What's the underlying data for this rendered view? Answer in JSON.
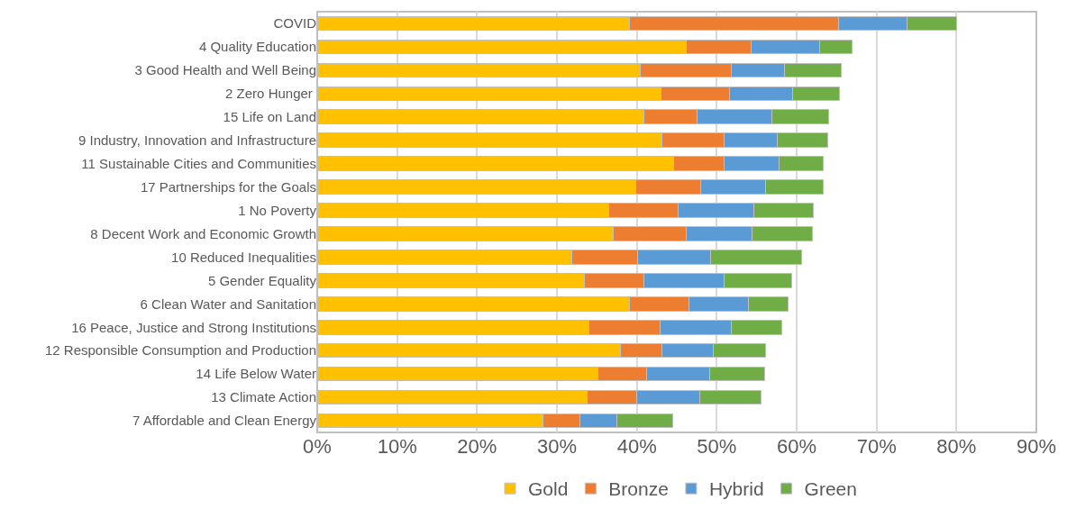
{
  "chart_data": {
    "type": "bar",
    "orientation": "horizontal",
    "stacked": true,
    "categories": [
      "COVID",
      "4 Quality Education",
      "3 Good Health and Well Being",
      "2 Zero Hunger ",
      "15 Life on Land",
      "9 Industry, Innovation and Infrastructure",
      "11 Sustainable Cities and Communities",
      "17 Partnerships for the Goals",
      "1 No Poverty",
      "8 Decent Work and Economic Growth",
      "10 Reduced Inequalities",
      "5 Gender Equality",
      "6 Clean Water and Sanitation",
      "16 Peace, Justice and Strong Institutions",
      "12 Responsible Consumption and Production",
      "14 Life Below Water",
      "13 Climate Action",
      "7 Affordable and Clean Energy"
    ],
    "series": [
      {
        "name": "Gold",
        "color": "#ffc000",
        "values": [
          39.1,
          46.2,
          40.4,
          43.0,
          40.9,
          43.1,
          44.6,
          39.9,
          36.5,
          37.1,
          31.9,
          33.4,
          39.1,
          34.0,
          38.0,
          35.1,
          33.8,
          28.2
        ]
      },
      {
        "name": "Bronze",
        "color": "#ed7d31",
        "values": [
          26.2,
          8.1,
          11.4,
          8.6,
          6.6,
          7.8,
          6.3,
          8.1,
          8.7,
          9.1,
          8.2,
          7.5,
          7.4,
          8.9,
          5.1,
          6.1,
          6.2,
          4.7
        ]
      },
      {
        "name": "Hybrid",
        "color": "#5b9bd5",
        "values": [
          8.5,
          8.6,
          6.7,
          7.9,
          9.4,
          6.7,
          6.9,
          8.1,
          9.4,
          8.2,
          9.1,
          10.0,
          7.5,
          8.9,
          6.5,
          7.9,
          7.9,
          4.6
        ]
      },
      {
        "name": "Green",
        "color": "#70ad47",
        "values": [
          6.2,
          4.0,
          7.1,
          5.9,
          7.1,
          6.3,
          5.5,
          7.2,
          7.5,
          7.6,
          11.4,
          8.5,
          4.9,
          6.3,
          6.5,
          6.9,
          7.6,
          7.0
        ]
      }
    ],
    "xlim": [
      0,
      90
    ],
    "xticks": [
      {
        "value": 0,
        "label": "0%"
      },
      {
        "value": 10,
        "label": "10%"
      },
      {
        "value": 20,
        "label": "20%"
      },
      {
        "value": 30,
        "label": "30%"
      },
      {
        "value": 40,
        "label": "40%"
      },
      {
        "value": 50,
        "label": "50%"
      },
      {
        "value": 60,
        "label": "60%"
      },
      {
        "value": 70,
        "label": "70%"
      },
      {
        "value": 80,
        "label": "80%"
      },
      {
        "value": 90,
        "label": "90%"
      }
    ],
    "grid": "x",
    "legend": "bottom"
  }
}
